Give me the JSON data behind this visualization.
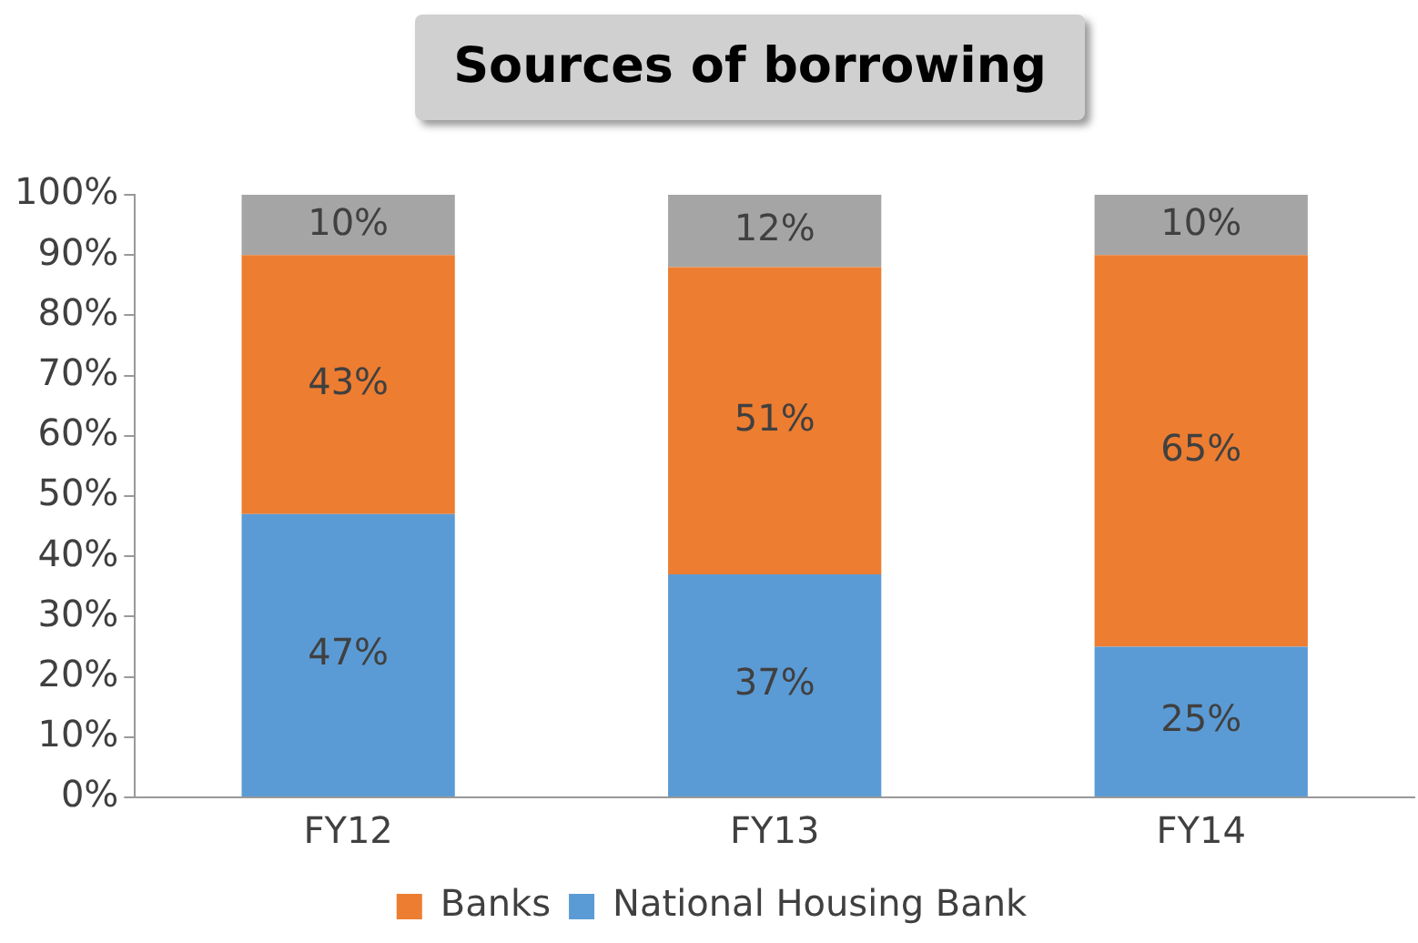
{
  "chart_data": {
    "type": "bar",
    "title": "Sources of borrowing",
    "stacked": true,
    "categories": [
      "FY12",
      "FY13",
      "FY14"
    ],
    "series": [
      {
        "name": "National Housing Bank",
        "color": "#5b9bd5",
        "values": [
          47,
          37,
          25
        ],
        "value_labels": [
          "47%",
          "37%",
          "25%"
        ]
      },
      {
        "name": "Banks",
        "color": "#ed7d31",
        "values": [
          43,
          51,
          65
        ],
        "value_labels": [
          "43%",
          "51%",
          "65%"
        ]
      },
      {
        "color": "#a5a5a5",
        "values": [
          10,
          12,
          10
        ],
        "value_labels": [
          "10%",
          "12%",
          "10%"
        ]
      }
    ],
    "ylim": [
      0,
      100
    ],
    "yticks": [
      {
        "value": 0,
        "label": "0%"
      },
      {
        "value": 10,
        "label": "10%"
      },
      {
        "value": 20,
        "label": "20%"
      },
      {
        "value": 30,
        "label": "30%"
      },
      {
        "value": 40,
        "label": "40%"
      },
      {
        "value": 50,
        "label": "50%"
      },
      {
        "value": 60,
        "label": "60%"
      },
      {
        "value": 70,
        "label": "70%"
      },
      {
        "value": 80,
        "label": "80%"
      },
      {
        "value": 90,
        "label": "90%"
      },
      {
        "value": 100,
        "label": "100%"
      }
    ],
    "grid": false,
    "legend": "bottom"
  }
}
